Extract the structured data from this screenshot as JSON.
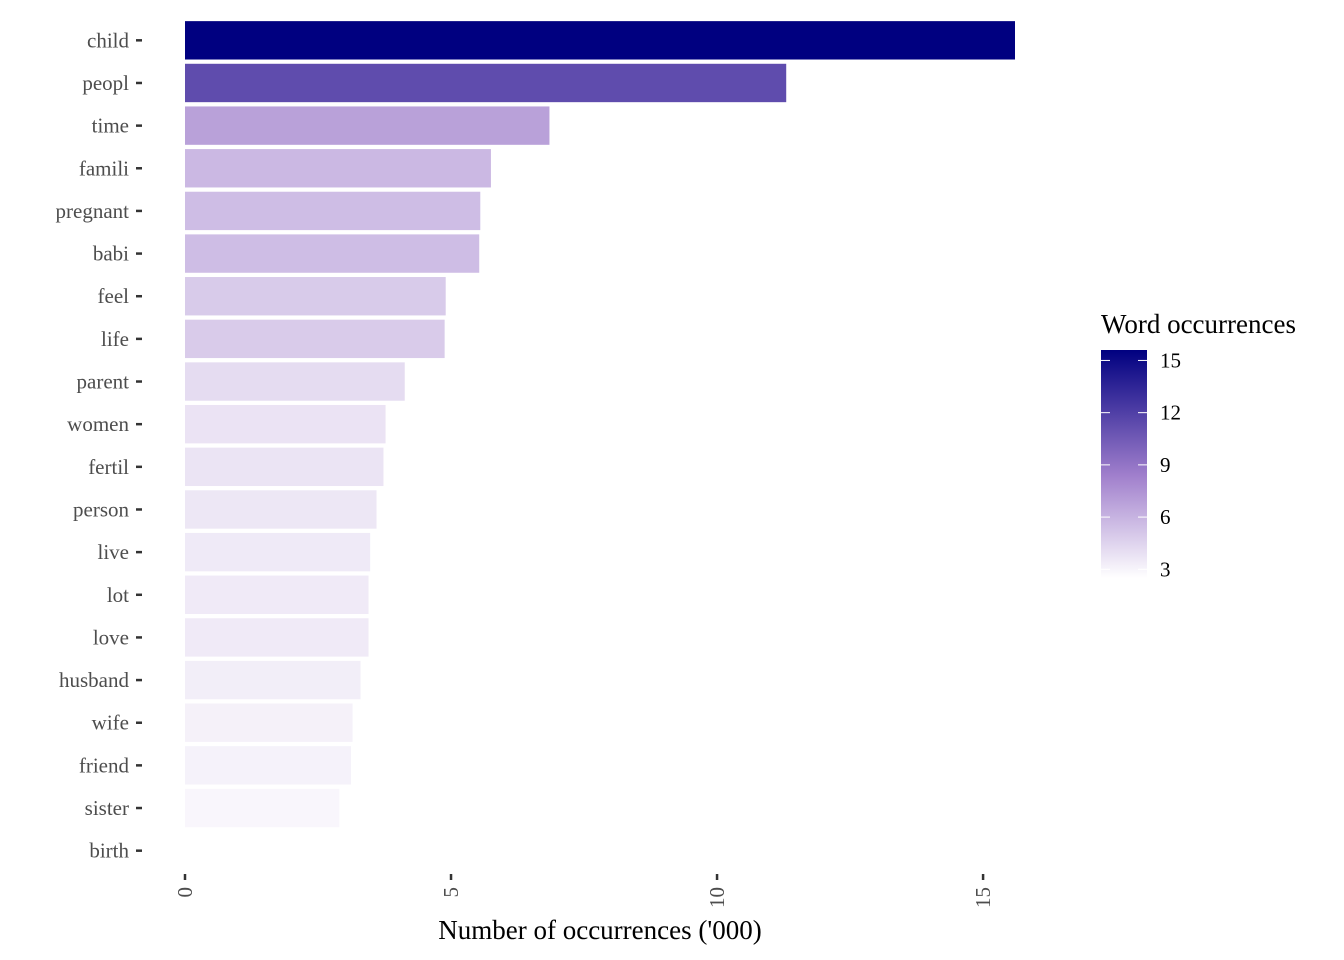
{
  "chart_data": {
    "type": "bar",
    "orientation": "horizontal",
    "categories": [
      "child",
      "peopl",
      "time",
      "famili",
      "pregnant",
      "babi",
      "feel",
      "life",
      "parent",
      "women",
      "fertil",
      "person",
      "live",
      "lot",
      "love",
      "husband",
      "wife",
      "friend",
      "sister",
      "birth"
    ],
    "values": [
      15.6,
      11.3,
      6.85,
      5.75,
      5.55,
      5.53,
      4.9,
      4.88,
      4.13,
      3.77,
      3.73,
      3.6,
      3.48,
      3.45,
      3.45,
      3.3,
      3.15,
      3.12,
      2.9,
      0
    ],
    "xlabel": "Number of occurrences ('000)",
    "ylabel": "",
    "xlim": [
      0,
      15.6
    ],
    "x_ticks": [
      0,
      5,
      10,
      15
    ],
    "grid": false,
    "legend": {
      "title": "Word occurrences",
      "placement": "right",
      "range": [
        2.5,
        15.6
      ],
      "ticks": [
        3,
        6,
        9,
        12,
        15
      ],
      "color_low": "#ffffff",
      "color_mid": "#a07fcc",
      "color_high": "#000080"
    }
  }
}
